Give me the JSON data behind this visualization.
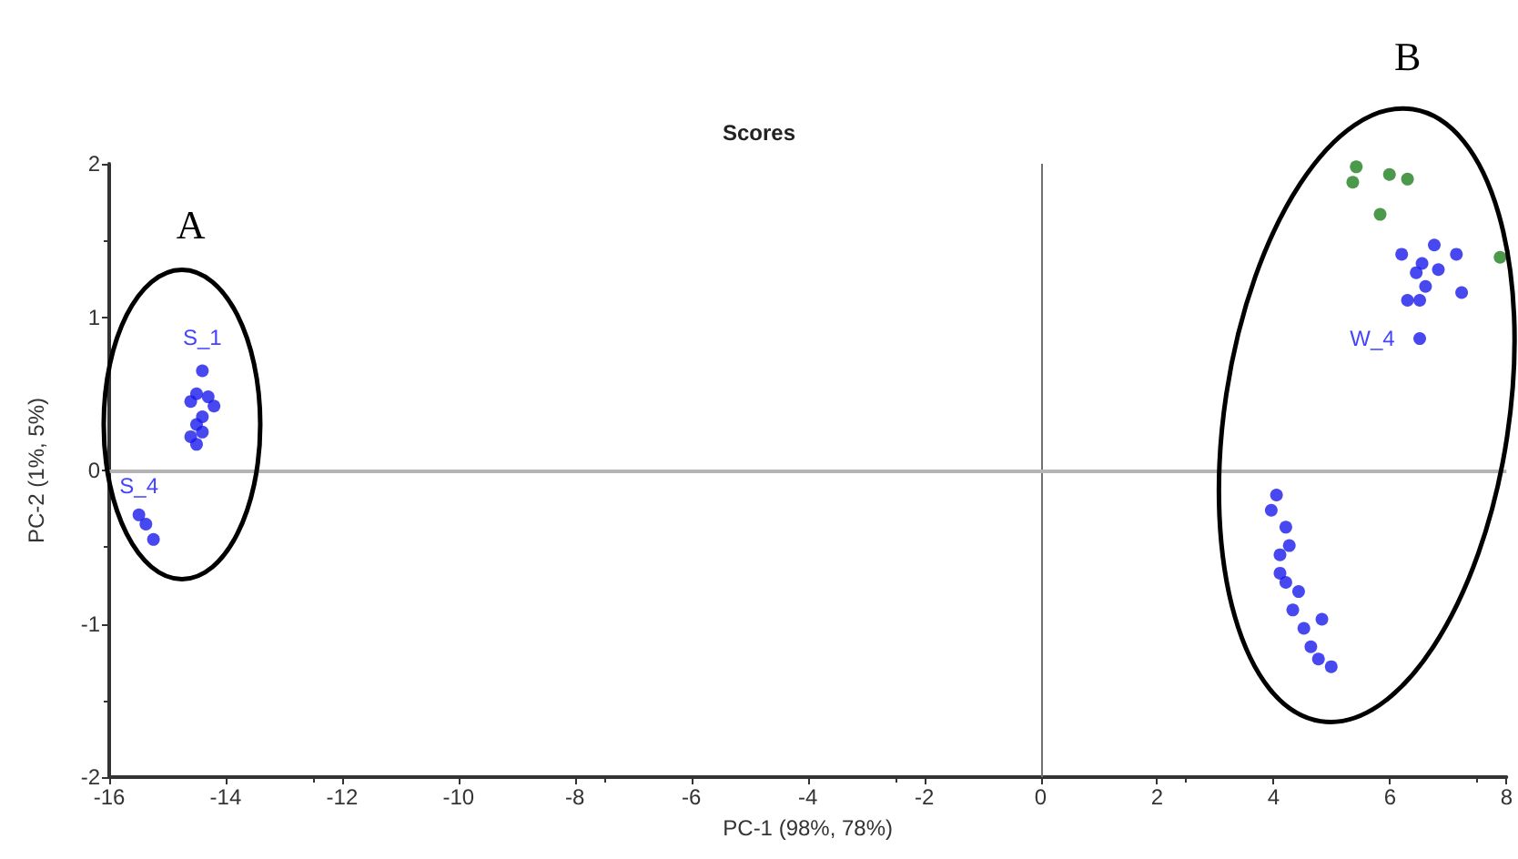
{
  "chart_data": {
    "type": "scatter",
    "title": "Scores",
    "xlabel": "PC-1 (98%, 78%)",
    "ylabel": "PC-2 (1%, 5%)",
    "xlim": [
      -16,
      8
    ],
    "xticks": [
      -16,
      -14,
      -12,
      -10,
      -8,
      -6,
      -4,
      -2,
      0,
      2,
      4,
      6,
      8
    ],
    "ylim": [
      -2,
      2
    ],
    "yticks": [
      -2,
      -1,
      0,
      1,
      2
    ],
    "grid": false,
    "marker": "circle",
    "ref_lines": [
      {
        "axis": "x",
        "value": 0,
        "color": "#707070"
      },
      {
        "axis": "y",
        "value": 0,
        "color": "#b4b4b4"
      }
    ],
    "annotations": [
      "A",
      "B",
      {
        "text": "S_1",
        "x": -14.4,
        "y": 0.65
      },
      {
        "text": "S_4",
        "x": -15.49,
        "y": -0.29
      },
      {
        "text": "W_4",
        "x": 6.51,
        "y": 0.86
      }
    ],
    "series": [
      {
        "color": "#1a1aee",
        "x": [
          -14.4,
          -14.5,
          -14.3,
          -14.6,
          -14.2,
          -14.4,
          -14.5,
          -14.6,
          -14.5,
          -14.4,
          -15.49,
          -15.37,
          -15.24,
          7.14,
          6.55,
          6.76,
          6.61,
          6.3,
          7.23,
          6.51,
          6.51,
          6.2,
          6.45,
          6.83,
          4.05,
          4.21,
          4.11,
          4.21,
          4.33,
          4.52,
          4.64,
          4.77,
          4.99,
          3.96,
          4.27,
          4.11,
          4.43,
          4.83
        ],
        "values": [
          0.65,
          0.5,
          0.48,
          0.45,
          0.42,
          0.35,
          0.3,
          0.22,
          0.17,
          0.25,
          -0.29,
          -0.35,
          -0.45,
          1.41,
          1.35,
          1.47,
          1.2,
          1.11,
          1.16,
          1.11,
          0.86,
          1.41,
          1.29,
          1.31,
          -0.16,
          -0.37,
          -0.55,
          -0.73,
          -0.91,
          -1.03,
          -1.15,
          -1.23,
          -1.28,
          -0.26,
          -0.49,
          -0.67,
          -0.79,
          -0.97
        ]
      },
      {
        "color": "#1f7f1f",
        "x": [
          5.42,
          5.99,
          6.3,
          5.83,
          7.89,
          5.36
        ],
        "values": [
          1.98,
          1.93,
          1.9,
          1.67,
          1.39,
          1.88
        ]
      }
    ]
  }
}
